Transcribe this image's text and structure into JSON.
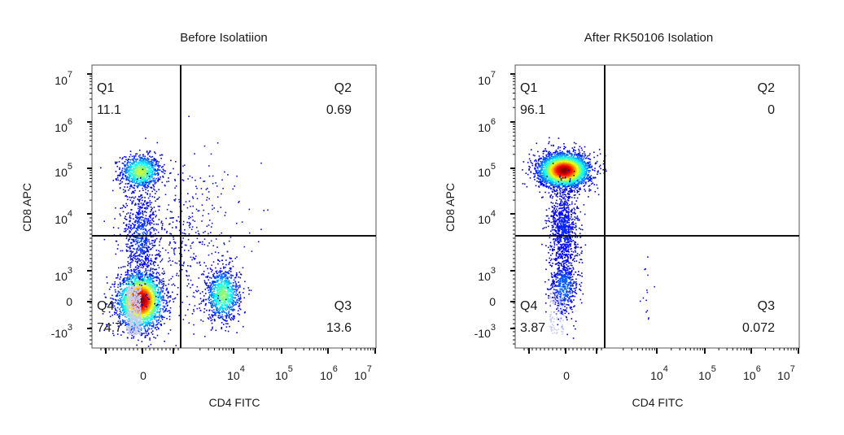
{
  "chart_data": [
    {
      "type": "scatter",
      "title": "Before Isolatiion",
      "xlabel": "CD4 FITC",
      "ylabel": "CD8 APC",
      "x_ticks": [
        {
          "base": "0",
          "exp": ""
        },
        {
          "base": "10",
          "exp": "4"
        },
        {
          "base": "10",
          "exp": "5"
        },
        {
          "base": "10",
          "exp": "6"
        },
        {
          "base": "10",
          "exp": "7"
        }
      ],
      "y_ticks": [
        {
          "base": "10",
          "exp": "7"
        },
        {
          "base": "10",
          "exp": "6"
        },
        {
          "base": "10",
          "exp": "5"
        },
        {
          "base": "10",
          "exp": "4"
        },
        {
          "base": "10",
          "exp": "3"
        },
        {
          "base": "0",
          "exp": ""
        },
        {
          "base": "-10",
          "exp": "3"
        }
      ],
      "quadrants": [
        {
          "name": "Q1",
          "value": "11.1"
        },
        {
          "name": "Q2",
          "value": "0.69"
        },
        {
          "name": "Q3",
          "value": "13.6"
        },
        {
          "name": "Q4",
          "value": "74.7"
        }
      ],
      "populations": [
        {
          "label": "CD8+ CD4-",
          "x_pos": 0.17,
          "y_pos": 0.625,
          "n": 900,
          "sx": 0.035,
          "sy": 0.03,
          "peak": 0.55
        },
        {
          "label": "CD8- CD4-",
          "x_pos": 0.17,
          "y_pos": 0.17,
          "n": 2600,
          "sx": 0.04,
          "sy": 0.05,
          "peak": 1.0
        },
        {
          "label": "CD4+",
          "x_pos": 0.46,
          "y_pos": 0.19,
          "n": 900,
          "sx": 0.03,
          "sy": 0.045,
          "peak": 0.5
        },
        {
          "label": "bridge",
          "x_pos": 0.17,
          "y_pos": 0.4,
          "n": 700,
          "sx": 0.03,
          "sy": 0.09,
          "peak": 0.15
        },
        {
          "label": "scatter",
          "x_pos": 0.32,
          "y_pos": 0.38,
          "n": 500,
          "sx": 0.1,
          "sy": 0.15,
          "peak": 0.0
        }
      ]
    },
    {
      "type": "scatter",
      "title": "After RK50106 Isolation",
      "xlabel": "CD4 FITC",
      "ylabel": "CD8 APC",
      "x_ticks": [
        {
          "base": "0",
          "exp": ""
        },
        {
          "base": "10",
          "exp": "4"
        },
        {
          "base": "10",
          "exp": "5"
        },
        {
          "base": "10",
          "exp": "6"
        },
        {
          "base": "10",
          "exp": "7"
        }
      ],
      "y_ticks": [
        {
          "base": "10",
          "exp": "7"
        },
        {
          "base": "10",
          "exp": "6"
        },
        {
          "base": "10",
          "exp": "5"
        },
        {
          "base": "10",
          "exp": "4"
        },
        {
          "base": "10",
          "exp": "3"
        },
        {
          "base": "0",
          "exp": ""
        },
        {
          "base": "-10",
          "exp": "3"
        }
      ],
      "quadrants": [
        {
          "name": "Q1",
          "value": "96.1"
        },
        {
          "name": "Q2",
          "value": "0"
        },
        {
          "name": "Q3",
          "value": "0.072"
        },
        {
          "name": "Q4",
          "value": "3.87"
        }
      ],
      "populations": [
        {
          "label": "CD8+ CD4-",
          "x_pos": 0.17,
          "y_pos": 0.63,
          "n": 3200,
          "sx": 0.045,
          "sy": 0.03,
          "peak": 1.0
        },
        {
          "label": "CD8 tail",
          "x_pos": 0.17,
          "y_pos": 0.42,
          "n": 900,
          "sx": 0.025,
          "sy": 0.08,
          "peak": 0.12
        },
        {
          "label": "CD8- CD4-",
          "x_pos": 0.17,
          "y_pos": 0.22,
          "n": 500,
          "sx": 0.025,
          "sy": 0.05,
          "peak": 0.2
        },
        {
          "label": "CD4+",
          "x_pos": 0.46,
          "y_pos": 0.18,
          "n": 14,
          "sx": 0.01,
          "sy": 0.06,
          "peak": 0.0
        }
      ]
    }
  ],
  "colors": {
    "gate": "#111111",
    "frame": "#555555",
    "density_low": "#0000cc",
    "density_high": "#ff0000"
  }
}
